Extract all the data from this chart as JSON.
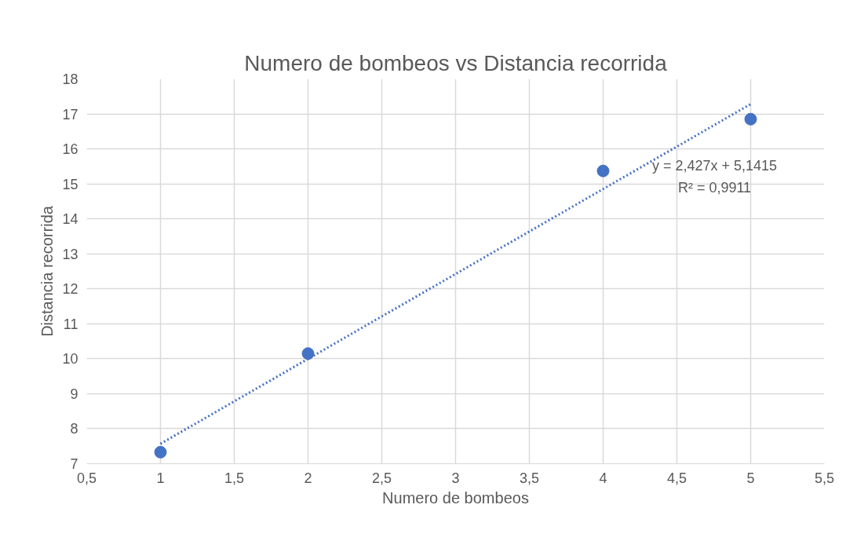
{
  "chart_data": {
    "type": "scatter",
    "title": "Numero de bombeos vs Distancia recorrida",
    "xlabel": "Numero de bombeos",
    "ylabel": "Distancia recorrida",
    "series": [
      {
        "color": "#4472c4",
        "x": [
          1,
          2,
          4,
          5
        ],
        "values": [
          7.33,
          10.15,
          15.37,
          16.85
        ],
        "marker": "circle"
      },
      {
        "type": "line",
        "color": "#4472c4",
        "x": [
          1,
          5
        ],
        "values": [
          7.57,
          17.28
        ],
        "line_style": "dotted",
        "marker": "none"
      }
    ],
    "xlim": [
      0.5,
      5.5
    ],
    "xticks": [
      {
        "value": 0.5,
        "label": "0,5"
      },
      1,
      {
        "value": 1.5,
        "label": "1,5"
      },
      2,
      {
        "value": 2.5,
        "label": "2,5"
      },
      3,
      {
        "value": 3.5,
        "label": "3,5"
      },
      4,
      {
        "value": 4.5,
        "label": "4,5"
      },
      5,
      {
        "value": 5.5,
        "label": "5,5"
      }
    ],
    "ylim": [
      7,
      18
    ],
    "yticks": [
      7,
      8,
      9,
      10,
      11,
      12,
      13,
      14,
      15,
      16,
      17,
      18
    ],
    "grid": true,
    "annotations": [
      "y = 2,427x + 5,1415",
      "R² = 0,9911"
    ]
  }
}
